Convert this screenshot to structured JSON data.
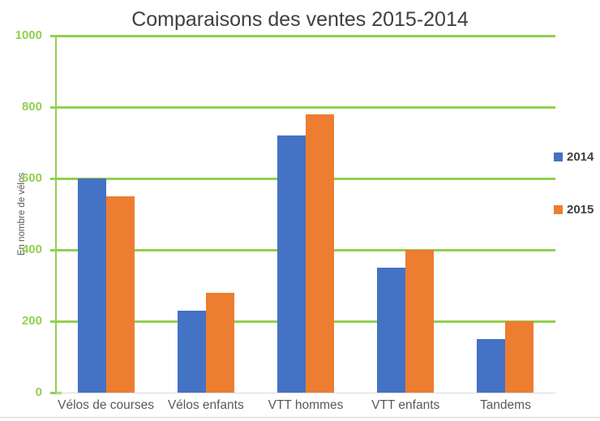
{
  "chart_data": {
    "type": "bar",
    "title": "Comparaisons des ventes 2015-2014",
    "xlabel": "",
    "ylabel": "En nombre de vélos",
    "categories": [
      "Vélos de courses",
      "Vélos enfants",
      "VTT hommes",
      "VTT enfants",
      "Tandems"
    ],
    "series": [
      {
        "name": "2014",
        "color": "#4472C4",
        "values": [
          600,
          230,
          720,
          350,
          150
        ]
      },
      {
        "name": "2015",
        "color": "#ED7D31",
        "values": [
          550,
          280,
          780,
          400,
          200
        ]
      }
    ],
    "ylim": [
      0,
      1000
    ],
    "yticks": [
      0,
      200,
      400,
      600,
      800,
      1000
    ],
    "grid": "horizontal",
    "legend_position": "right",
    "colors": {
      "axis_and_ticks_green": "#92D050",
      "gridline_green": "#92D050",
      "title_gray": "#404040",
      "category_label_gray": "#595959",
      "axis_title_gray": "#595959",
      "baseline_gray": "#D9D9D9",
      "background": "#FFFFFF"
    }
  }
}
